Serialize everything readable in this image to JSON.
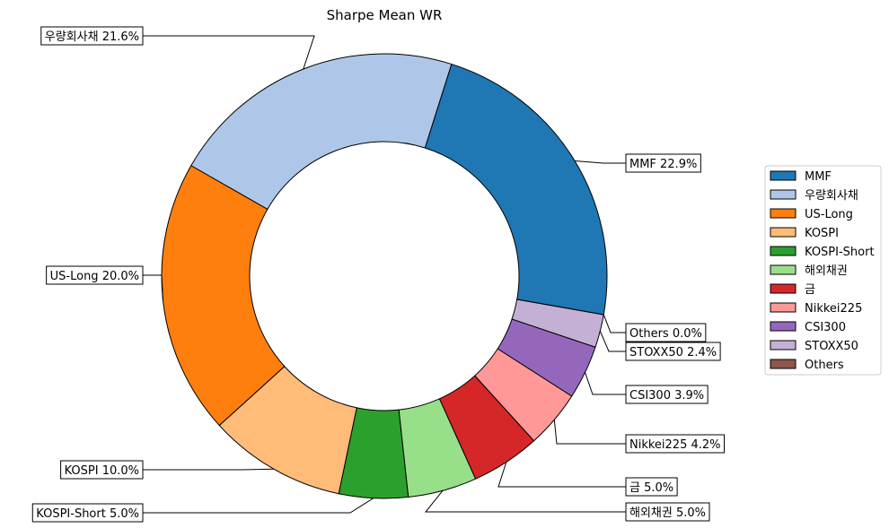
{
  "chart_data": {
    "type": "pie",
    "variant": "donut",
    "title": "Sharpe Mean WR",
    "slices": [
      {
        "label": "MMF",
        "value": 22.9,
        "color": "#1f77b4"
      },
      {
        "label": "우량회사채",
        "value": 21.6,
        "color": "#aec7e8"
      },
      {
        "label": "US-Long",
        "value": 20.0,
        "color": "#ff7f0e"
      },
      {
        "label": "KOSPI",
        "value": 10.0,
        "color": "#ffbb78"
      },
      {
        "label": "KOSPI-Short",
        "value": 5.0,
        "color": "#2ca02c"
      },
      {
        "label": "해외채권",
        "value": 5.0,
        "color": "#98df8a"
      },
      {
        "label": "금",
        "value": 5.0,
        "color": "#d62728"
      },
      {
        "label": "Nikkei225",
        "value": 4.2,
        "color": "#ff9896"
      },
      {
        "label": "CSI300",
        "value": 3.9,
        "color": "#9467bd"
      },
      {
        "label": "STOXX50",
        "value": 2.4,
        "color": "#c5b0d5"
      },
      {
        "label": "Others",
        "value": 0.0,
        "color": "#8c564b"
      }
    ],
    "data_labels": [
      "MMF 22.9%",
      "우량회사채 21.6%",
      "US-Long 20.0%",
      "KOSPI 10.0%",
      "KOSPI-Short 5.0%",
      "해외채권 5.0%",
      "금 5.0%",
      "Nikkei225 4.2%",
      "CSI300 3.9%",
      "STOXX50 2.4%",
      "Others 0.0%"
    ],
    "legend": {
      "placement": "right",
      "entries": [
        "MMF",
        "우량회사채",
        "US-Long",
        "KOSPI",
        "KOSPI-Short",
        "해외채권",
        "금",
        "Nikkei225",
        "CSI300",
        "STOXX50",
        "Others"
      ]
    },
    "label_format": "percent",
    "start_angle_deg": -10,
    "direction": "counterclockwise"
  }
}
